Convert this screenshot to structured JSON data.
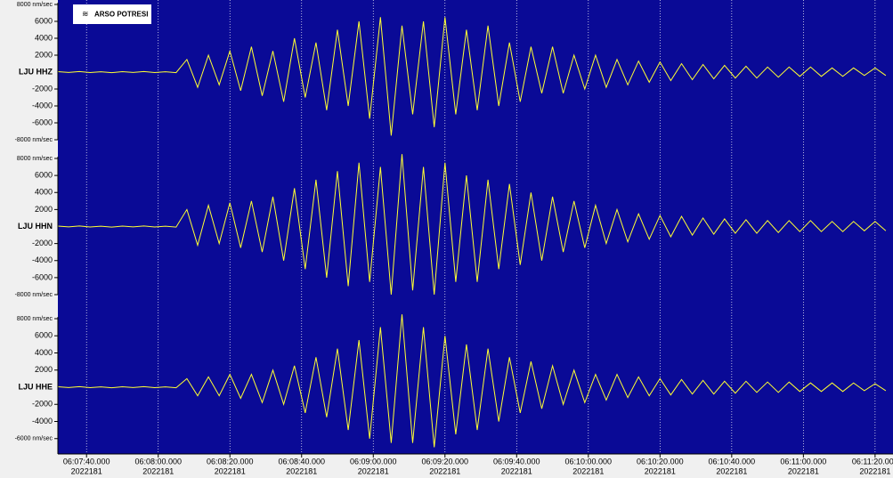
{
  "chart_data": {
    "type": "line",
    "annotation": "ARSO POTRESI",
    "x": [
      22052,
      22055,
      22058,
      22061,
      22064,
      22067,
      22070,
      22073,
      22076,
      22079,
      22082,
      22085,
      22088,
      22091,
      22094,
      22097,
      22100,
      22103,
      22106,
      22109,
      22112,
      22115,
      22118,
      22121,
      22124,
      22127,
      22130,
      22133,
      22136,
      22139,
      22142,
      22145,
      22148,
      22151,
      22154,
      22157,
      22160,
      22163,
      22166,
      22169,
      22172,
      22175,
      22178,
      22181,
      22184,
      22187,
      22190,
      22193,
      22196,
      22199,
      22202,
      22205,
      22208,
      22211,
      22214,
      22217,
      22220,
      22223,
      22226,
      22229,
      22232,
      22235,
      22238,
      22241,
      22244,
      22247,
      22250,
      22253,
      22256,
      22259,
      22262,
      22265,
      22268,
      22271,
      22274,
      22277,
      22280,
      22283
    ],
    "xlim": [
      22052,
      22285
    ],
    "xticks": [
      {
        "value": 22060,
        "label": "06:07:40.000",
        "sublabel": "2022181"
      },
      {
        "value": 22080,
        "label": "06:08:00.000",
        "sublabel": "2022181"
      },
      {
        "value": 22100,
        "label": "06:08:20.000",
        "sublabel": "2022181"
      },
      {
        "value": 22120,
        "label": "06:08:40.000",
        "sublabel": "2022181"
      },
      {
        "value": 22140,
        "label": "06:09:00.000",
        "sublabel": "2022181"
      },
      {
        "value": 22160,
        "label": "06:09:20.000",
        "sublabel": "2022181"
      },
      {
        "value": 22180,
        "label": "06:09:40.000",
        "sublabel": "2022181"
      },
      {
        "value": 22200,
        "label": "06:10:00.000",
        "sublabel": "2022181"
      },
      {
        "value": 22220,
        "label": "06:10:20.000",
        "sublabel": "2022181"
      },
      {
        "value": 22240,
        "label": "06:10:40.000",
        "sublabel": "2022181"
      },
      {
        "value": 22260,
        "label": "06:11:00.000",
        "sublabel": "2022181"
      },
      {
        "value": 22280,
        "label": "06:11:20.000",
        "sublabel": "2022181"
      }
    ],
    "grid": true,
    "background": "#0a0a96",
    "series": [
      {
        "name": "LJU HHZ",
        "color": "#ffff33",
        "ylim": [
          -8000,
          8000
        ],
        "yticks": [
          {
            "value": 8000,
            "label": "8000 nm/sec"
          },
          6000,
          4000,
          2000,
          -2000,
          -4000,
          -6000,
          {
            "value": -8000,
            "label": "-8000 nm/sec"
          }
        ],
        "values": [
          50,
          -40,
          60,
          -50,
          40,
          -60,
          50,
          -40,
          60,
          -50,
          40,
          -60,
          1500,
          -1800,
          2000,
          -1500,
          2500,
          -2200,
          3000,
          -2800,
          2500,
          -3500,
          4000,
          -3000,
          3500,
          -4500,
          5000,
          -4000,
          6000,
          -5500,
          6500,
          -7500,
          5500,
          -5000,
          6000,
          -6500,
          6500,
          -5000,
          5000,
          -4500,
          5500,
          -4000,
          3500,
          -3500,
          3000,
          -2500,
          3000,
          -2500,
          2000,
          -2000,
          2000,
          -1800,
          1500,
          -1500,
          1300,
          -1200,
          1200,
          -1000,
          1000,
          -900,
          900,
          -800,
          800,
          -700,
          700,
          -700,
          600,
          -600,
          600,
          -500,
          600,
          -500,
          500,
          -500,
          500,
          -400,
          500,
          -400
        ]
      },
      {
        "name": "LJU HHN",
        "color": "#ffff33",
        "ylim": [
          -8000,
          8000
        ],
        "yticks": [
          {
            "value": 8000,
            "label": "8000 nm/sec"
          },
          6000,
          4000,
          2000,
          -2000,
          -4000,
          -6000,
          {
            "value": -8000,
            "label": "-8000 nm/sec"
          }
        ],
        "values": [
          50,
          -40,
          60,
          -50,
          40,
          -60,
          50,
          -40,
          60,
          -50,
          40,
          -60,
          2000,
          -2200,
          2500,
          -2000,
          2800,
          -2500,
          3000,
          -3000,
          3500,
          -4000,
          4500,
          -5000,
          5500,
          -6000,
          6500,
          -7000,
          7500,
          -6500,
          7000,
          -8000,
          8500,
          -7500,
          7000,
          -8000,
          7500,
          -6500,
          6000,
          -6500,
          5500,
          -5000,
          5000,
          -4500,
          4000,
          -4000,
          3500,
          -3000,
          3000,
          -2500,
          2500,
          -2000,
          2000,
          -1800,
          1500,
          -1500,
          1300,
          -1200,
          1200,
          -1000,
          1000,
          -900,
          900,
          -800,
          800,
          -800,
          700,
          -700,
          700,
          -600,
          700,
          -600,
          600,
          -600,
          600,
          -500,
          600,
          -500
        ]
      },
      {
        "name": "LJU HHE",
        "color": "#ffff33",
        "ylim": [
          -8000,
          8000
        ],
        "yticks": [
          {
            "value": 8000,
            "label": "8000 nm/sec"
          },
          6000,
          4000,
          2000,
          -2000,
          -4000,
          {
            "value": -6000,
            "label": "-6000 nm/sec"
          }
        ],
        "values": [
          50,
          -40,
          60,
          -50,
          40,
          -60,
          50,
          -40,
          60,
          -50,
          40,
          -60,
          1000,
          -1000,
          1200,
          -1000,
          1500,
          -1300,
          1500,
          -1800,
          2000,
          -2000,
          2500,
          -3000,
          3500,
          -3500,
          4500,
          -5000,
          5500,
          -6000,
          7000,
          -6500,
          8500,
          -6500,
          7000,
          -7000,
          6000,
          -5500,
          5000,
          -5000,
          4500,
          -4000,
          3500,
          -3000,
          3000,
          -2500,
          2500,
          -2000,
          2000,
          -1800,
          1500,
          -1500,
          1500,
          -1200,
          1200,
          -1000,
          1000,
          -900,
          900,
          -800,
          800,
          -800,
          700,
          -700,
          700,
          -600,
          600,
          -600,
          600,
          -500,
          500,
          -500,
          500,
          -500,
          500,
          -400,
          400,
          -400
        ]
      }
    ]
  }
}
